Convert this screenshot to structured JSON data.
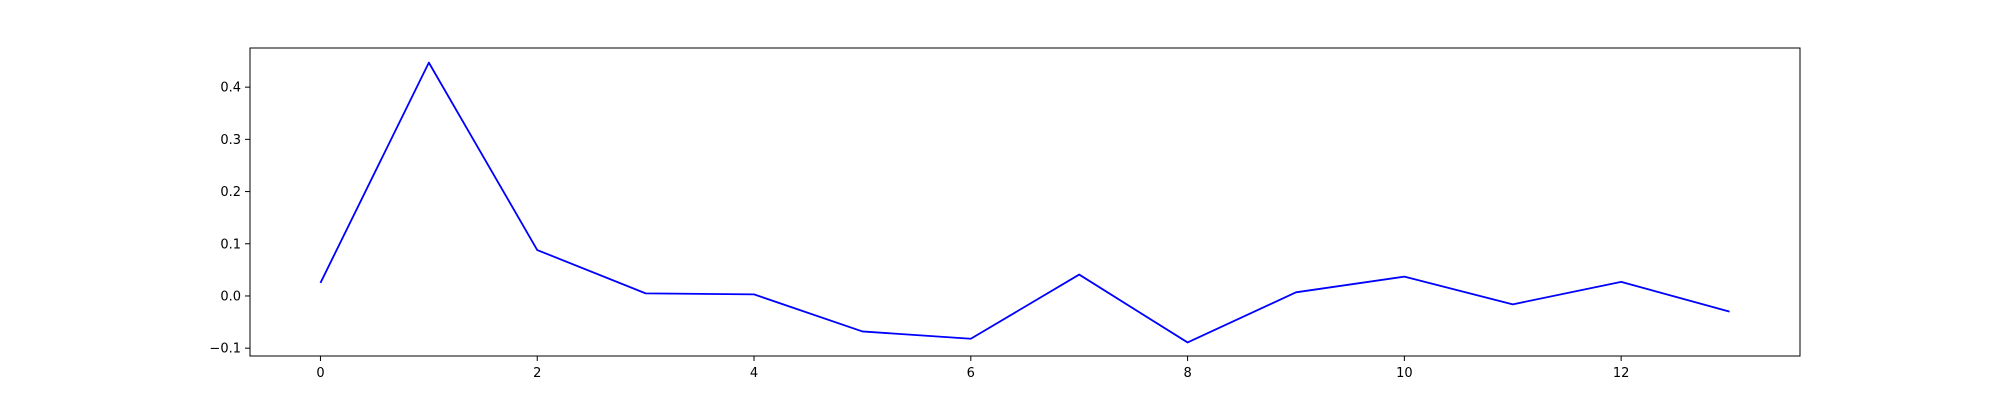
{
  "chart_data": {
    "type": "line",
    "title": "",
    "xlabel": "",
    "ylabel": "",
    "x": [
      0,
      1,
      2,
      3,
      4,
      5,
      6,
      7,
      8,
      9,
      10,
      11,
      12,
      13
    ],
    "series": [
      {
        "color": "#0000ff",
        "values": [
          0.025,
          0.447,
          0.088,
          0.005,
          0.003,
          -0.068,
          -0.082,
          0.041,
          -0.089,
          0.007,
          0.037,
          -0.016,
          0.027,
          -0.03
        ]
      }
    ],
    "xlim": [
      -0.65,
      13.65
    ],
    "ylim": [
      -0.115,
      0.475
    ],
    "xticks": [
      0,
      2,
      4,
      6,
      8,
      10,
      12
    ],
    "xtick_labels": [
      "0",
      "2",
      "4",
      "6",
      "8",
      "10",
      "12"
    ],
    "yticks": [
      -0.1,
      0.0,
      0.1,
      0.2,
      0.3,
      0.4
    ],
    "ytick_labels": [
      "−0.1",
      "0.0",
      "0.1",
      "0.2",
      "0.3",
      "0.4"
    ],
    "grid": false,
    "legend": "none"
  }
}
